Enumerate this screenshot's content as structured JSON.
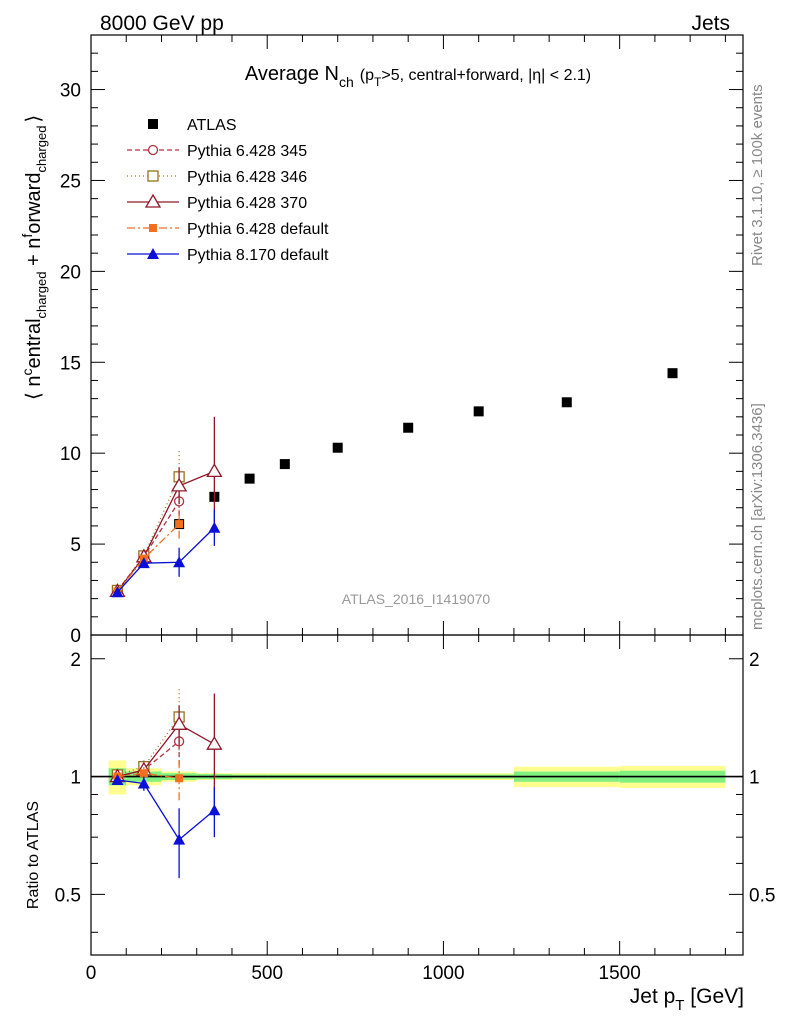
{
  "header": {
    "left": "8000 GeV pp",
    "right": "Jets"
  },
  "chart_data": {
    "type": "scatter",
    "title": "Average N",
    "title_sub": "ch",
    "title_rest_1": "(p",
    "title_rest_1_sub": "T",
    "title_rest_2": ">5, central+forward, |η| < 2.1)",
    "ylabel": "⟨ nᶜₑₙₜᵣₐₗ ⟩",
    "ylabel_parts": {
      "open": "⟨ n",
      "sup1": "c",
      "mid1": "entral",
      "sub1": "charged",
      "plus": " + n",
      "sup2": "f",
      "mid2": "orward",
      "sub2": "charged",
      "close": "⟩"
    },
    "xlabel_main": "Jet p",
    "xlabel_sub": "T",
    "xlabel_unit": " [GeV]",
    "ratio_ylabel": "Ratio to ATLAS",
    "xlim": [
      0,
      1850
    ],
    "ylim": [
      0,
      33
    ],
    "ratio_ylim": [
      0.35,
      2.3
    ],
    "x_ticks": [
      "0",
      "500",
      "1000",
      "1500"
    ],
    "x_tick_values": [
      0,
      500,
      1000,
      1500
    ],
    "y_ticks": [
      "0",
      "5",
      "10",
      "15",
      "20",
      "25",
      "30"
    ],
    "y_tick_values": [
      0,
      5,
      10,
      15,
      20,
      25,
      30
    ],
    "ratio_y_ticks": [
      "0.5",
      "1",
      "2"
    ],
    "ratio_y_tick_values": [
      0.5,
      1,
      2
    ],
    "analysis_label": "ATLAS_2016_I1419070",
    "side_label_top": "Rivet 3.1.10, ≥ 100k events",
    "side_label_bottom": "mcplots.cern.ch [arXiv:1306.3436]",
    "legend_position": "top-left",
    "data": {
      "name": "ATLAS",
      "x": [
        75,
        150,
        250,
        350,
        450,
        550,
        700,
        900,
        1100,
        1350,
        1650
      ],
      "y": [
        2.4,
        4.2,
        6.1,
        7.6,
        8.6,
        9.4,
        10.3,
        11.4,
        12.3,
        12.8,
        14.4
      ],
      "bin_edges": [
        50,
        100,
        200,
        300,
        400,
        500,
        600,
        800,
        1000,
        1200,
        1500,
        1800
      ],
      "band_inner": [
        0.05,
        0.03,
        0.02,
        0.015,
        0.012,
        0.012,
        0.012,
        0.012,
        0.012,
        0.03,
        0.035
      ],
      "band_outer": [
        0.1,
        0.05,
        0.03,
        0.02,
        0.02,
        0.02,
        0.02,
        0.02,
        0.02,
        0.06,
        0.065
      ]
    },
    "series": [
      {
        "name": "Pythia 6.428 345",
        "color": "#b03040",
        "marker": "circle-open",
        "dash": "5,3",
        "x": [
          75,
          150,
          250
        ],
        "y": [
          2.45,
          4.3,
          7.35
        ],
        "yerr": [
          0.1,
          0.2,
          0.8
        ],
        "ratio": [
          1.0,
          1.04,
          1.23
        ],
        "ratio_err": [
          0.02,
          0.04,
          0.16
        ]
      },
      {
        "name": "Pythia 6.428 346",
        "color": "#9a7020",
        "marker": "square-open",
        "dash": "1,3",
        "x": [
          75,
          150,
          250
        ],
        "y": [
          2.45,
          4.35,
          8.7
        ],
        "yerr": [
          0.1,
          0.2,
          1.5
        ],
        "ratio": [
          1.01,
          1.06,
          1.42
        ],
        "ratio_err": [
          0.02,
          0.04,
          0.28
        ]
      },
      {
        "name": "Pythia 6.428 370",
        "color": "#901828",
        "marker": "triangle-open",
        "dash": "",
        "x": [
          75,
          150,
          250,
          350
        ],
        "y": [
          2.4,
          4.3,
          8.2,
          9.0
        ],
        "yerr": [
          0.1,
          0.2,
          1.0,
          3.0
        ],
        "ratio": [
          1.0,
          1.04,
          1.36,
          1.21
        ],
        "ratio_err": [
          0.02,
          0.04,
          0.16,
          0.42
        ]
      },
      {
        "name": "Pythia 6.428 default",
        "color": "#f07020",
        "marker": "square-filled",
        "dash": "8,3,2,3",
        "x": [
          75,
          150,
          250
        ],
        "y": [
          2.4,
          4.2,
          6.1
        ],
        "yerr": [
          0.1,
          0.2,
          0.8
        ],
        "ratio": [
          1.0,
          1.02,
          0.99
        ],
        "ratio_err": [
          0.02,
          0.04,
          0.12
        ]
      },
      {
        "name": "Pythia 8.170 default",
        "color": "#0a10d8",
        "marker": "triangle-filled",
        "dash": "",
        "x": [
          75,
          150,
          250,
          350
        ],
        "y": [
          2.35,
          3.95,
          4.0,
          5.9
        ],
        "yerr": [
          0.1,
          0.2,
          0.8,
          1.0
        ],
        "ratio": [
          0.98,
          0.96,
          0.69,
          0.82
        ],
        "ratio_err": [
          0.02,
          0.04,
          0.14,
          0.12
        ]
      }
    ]
  }
}
